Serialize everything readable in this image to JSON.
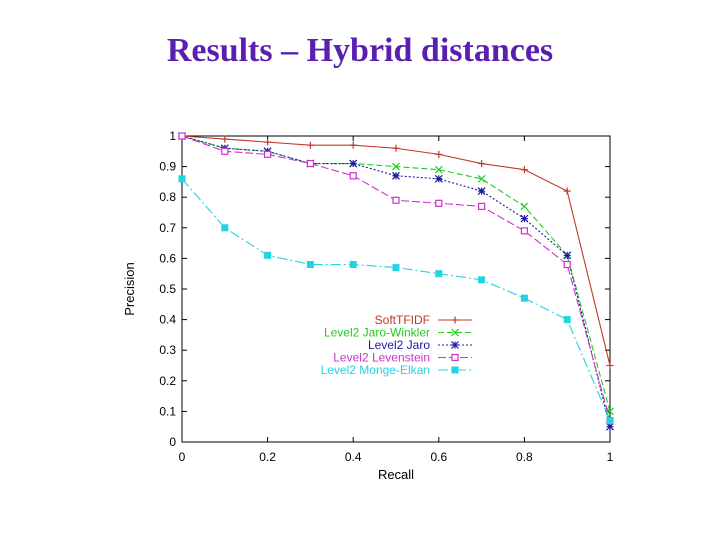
{
  "slide": {
    "title": "Results – Hybrid distances"
  },
  "chart_data": {
    "type": "line",
    "title": "Results – Hybrid distances",
    "xlabel": "Recall",
    "ylabel": "Precision",
    "xlim": [
      0,
      1
    ],
    "ylim": [
      0,
      1
    ],
    "x_ticks": [
      "0",
      "0.2",
      "0.4",
      "0.6",
      "0.8",
      "1"
    ],
    "y_ticks": [
      "0",
      "0.1",
      "0.2",
      "0.3",
      "0.4",
      "0.5",
      "0.6",
      "0.7",
      "0.8",
      "0.9",
      "1"
    ],
    "legend_position": "center-bottom",
    "grid": false,
    "series": [
      {
        "name": "SoftTFIDF",
        "color": "#c0392b",
        "marker": "plus",
        "dash": "",
        "x": [
          0,
          0.1,
          0.2,
          0.3,
          0.4,
          0.5,
          0.6,
          0.7,
          0.8,
          0.9,
          1
        ],
        "y": [
          1.0,
          0.99,
          0.98,
          0.97,
          0.97,
          0.96,
          0.94,
          0.91,
          0.89,
          0.82,
          0.25
        ]
      },
      {
        "name": "Level2 Jaro-Winkler",
        "color": "#22cc22",
        "marker": "x",
        "dash": "6,3",
        "x": [
          0,
          0.1,
          0.2,
          0.3,
          0.4,
          0.5,
          0.6,
          0.7,
          0.8,
          0.9,
          1
        ],
        "y": [
          1.0,
          0.96,
          0.95,
          0.91,
          0.91,
          0.9,
          0.89,
          0.86,
          0.77,
          0.61,
          0.1
        ]
      },
      {
        "name": "Level2 Jaro",
        "color": "#1a1aa0",
        "marker": "star",
        "dash": "2,2",
        "x": [
          0,
          0.1,
          0.2,
          0.3,
          0.4,
          0.5,
          0.6,
          0.7,
          0.8,
          0.9,
          1
        ],
        "y": [
          1.0,
          0.96,
          0.95,
          0.91,
          0.91,
          0.87,
          0.86,
          0.82,
          0.73,
          0.61,
          0.05
        ]
      },
      {
        "name": "Level2 Levenstein",
        "color": "#cc33cc",
        "marker": "square-open",
        "dash": "8,3",
        "x": [
          0,
          0.1,
          0.2,
          0.3,
          0.4,
          0.5,
          0.6,
          0.7,
          0.8,
          0.9,
          1
        ],
        "y": [
          1.0,
          0.95,
          0.94,
          0.91,
          0.87,
          0.79,
          0.78,
          0.77,
          0.69,
          0.58,
          0.07
        ]
      },
      {
        "name": "Level2 Monge-Elkan",
        "color": "#22d4e0",
        "marker": "square-filled",
        "dash": "10,3,2,3",
        "x": [
          0,
          0.1,
          0.2,
          0.3,
          0.4,
          0.5,
          0.6,
          0.7,
          0.8,
          0.9,
          1
        ],
        "y": [
          0.86,
          0.7,
          0.61,
          0.58,
          0.58,
          0.57,
          0.55,
          0.53,
          0.47,
          0.4,
          0.07
        ]
      }
    ]
  }
}
